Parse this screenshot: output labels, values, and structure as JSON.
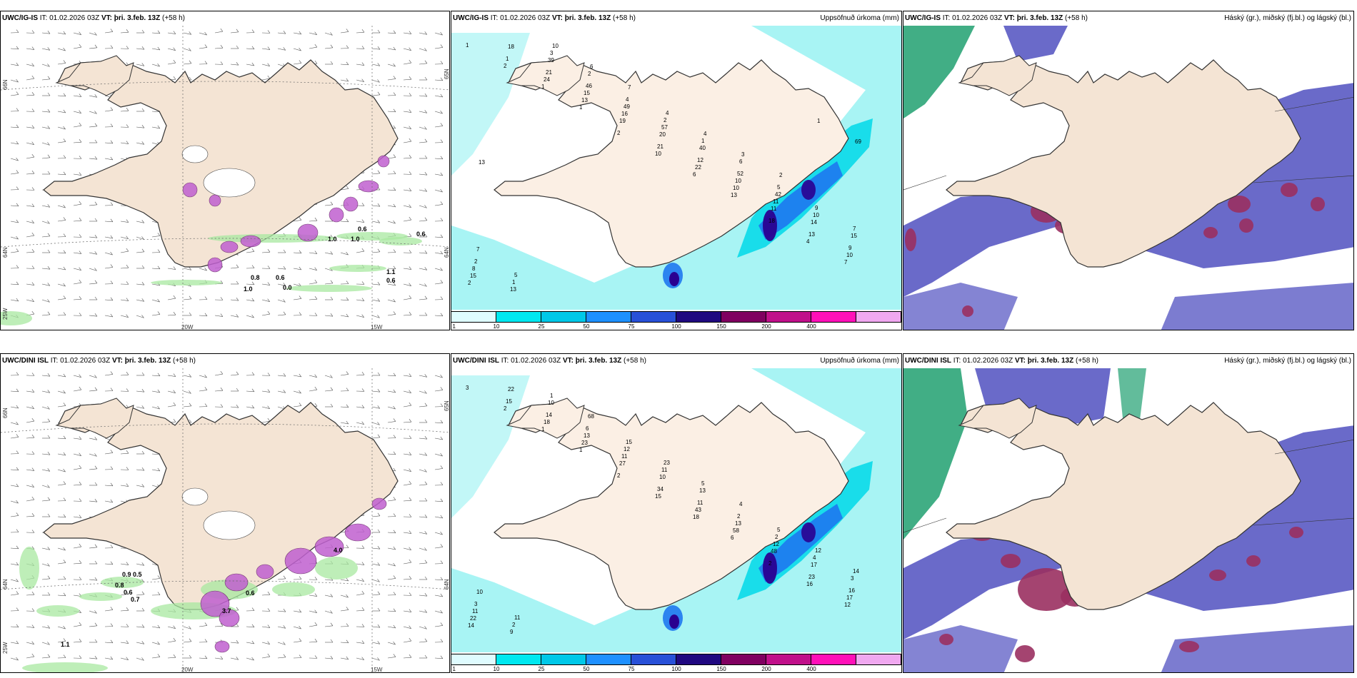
{
  "rows": [
    {
      "model": "UWC/IG-IS",
      "it_label": "IT:",
      "it_value": "01.02.2026 03Z",
      "vt_label": "VT:",
      "vt_value": "þri. 3.feb. 13Z",
      "lead": "(+58 h)",
      "axes": {
        "lat_left_1": "66N",
        "lat_left_2": "64N",
        "lon_left": "25W",
        "lon_bottom_1": "20W",
        "lon_bottom_2": "15W",
        "lat_right_1": "65N",
        "lat_right_2": "64N"
      }
    },
    {
      "model": "UWC/DINI ISL",
      "it_label": "IT:",
      "it_value": "01.02.2026 03Z",
      "vt_label": "VT:",
      "vt_value": "þri. 3.feb. 13Z",
      "lead": "(+58 h)",
      "axes": {
        "lat_left_1": "66N",
        "lat_left_2": "64N",
        "lon_left": "25W",
        "lon_bottom_1": "20W",
        "lon_bottom_2": "15W",
        "lat_right_1": "65N",
        "lat_right_2": "64N"
      }
    }
  ],
  "captions": {
    "precip": "Uppsöfnuð úrkoma (mm)",
    "cloud": "Háský (gr.), miðský (fj.bl.) og lágský (bl.)"
  },
  "colorbar": {
    "labels": [
      "1",
      "10",
      "25",
      "50",
      "75",
      "100",
      "150",
      "200",
      "400"
    ],
    "colors": [
      "#dffcff",
      "#00e8f0",
      "#00c8e8",
      "#1e90ff",
      "#2850d8",
      "#200880",
      "#800060",
      "#c0108a",
      "#ff10b8",
      "#f0a8f0"
    ]
  },
  "colors": {
    "land": "#f4e4d4",
    "land_precip": "#fbefe4",
    "coast": "#333333",
    "precip_light": "#a8f4f4",
    "precip_mid": "#00d8e8",
    "precip_high": "#1e78f0",
    "precip_very_high": "#2a0090",
    "purple_snow": "#c060d0",
    "green_light": "#a8e8a0",
    "cloud_high": "#20a070",
    "cloud_mid": "#5050c0",
    "cloud_low": "#9a3060"
  },
  "precip_top_labels": [
    "1",
    "2",
    "1",
    "1",
    "2",
    "10",
    "6",
    "13",
    "18",
    "4",
    "7",
    "2",
    "1",
    "24",
    "13",
    "19",
    "21",
    "22",
    "10",
    "11",
    "13",
    "10",
    "15",
    "18",
    "21",
    "15",
    "16",
    "20",
    "12",
    "10",
    "11",
    "14",
    "9",
    "8",
    "13",
    "39",
    "46",
    "49",
    "57",
    "40",
    "52",
    "42",
    "10",
    "15",
    "2",
    "1",
    "3",
    "2",
    "4",
    "2",
    "1",
    "6",
    "5",
    "9",
    "7",
    "7",
    "5",
    "10",
    "6",
    "7",
    "4",
    "4",
    "3",
    "2",
    "1",
    "69",
    "13"
  ],
  "precip_bottom_labels": [
    "3",
    "2",
    "1",
    "1",
    "2",
    "15",
    "18",
    "6",
    "2",
    "16",
    "12",
    "14",
    "15",
    "18",
    "23",
    "27",
    "34",
    "43",
    "58",
    "48",
    "23",
    "17",
    "22",
    "22",
    "14",
    "13",
    "11",
    "10",
    "11",
    "13",
    "12",
    "17",
    "16",
    "11",
    "9",
    "10",
    "6",
    "12",
    "11",
    "13",
    "2",
    "2",
    "4",
    "3",
    "3",
    "2",
    "1",
    "68",
    "15",
    "23",
    "5",
    "4",
    "5",
    "12",
    "14",
    "10",
    "11"
  ],
  "wind_top_labels": [
    "1.0",
    "1.0",
    "0.6",
    "0.6",
    "1.0",
    "0.8",
    "0.6",
    "1.1",
    "0.6",
    "0.0"
  ],
  "wind_bottom_labels": [
    "0.9",
    "0.5",
    "0.8",
    "0.6",
    "0.7",
    "1.1",
    "0.6",
    "3.7",
    "4.0"
  ]
}
